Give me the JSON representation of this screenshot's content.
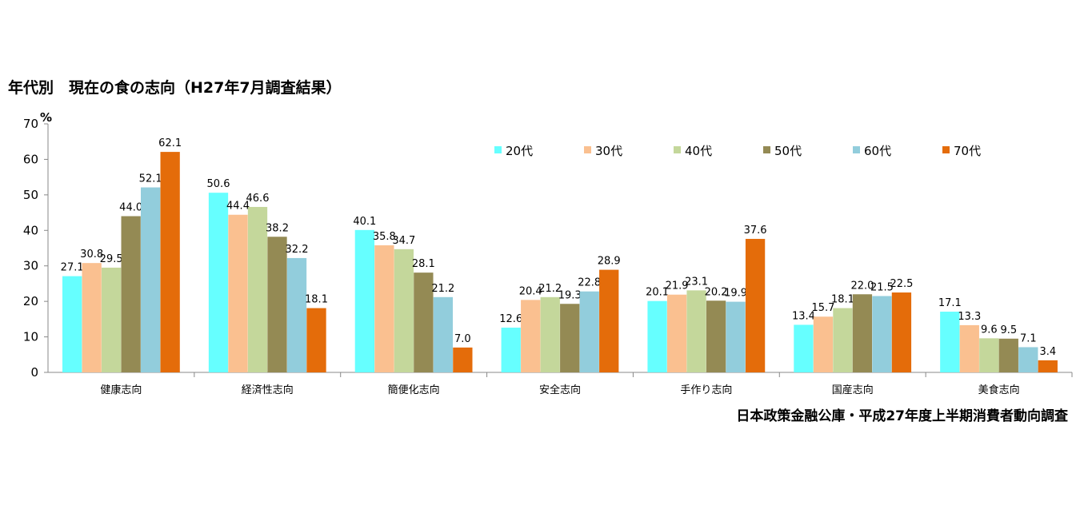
{
  "chart_data": {
    "type": "bar",
    "title": "年代別　現在の食の志向（H27年7月調査結果）",
    "ylabel": "%",
    "xlabel": "",
    "ylim": [
      0,
      70
    ],
    "yticks": [
      0,
      10,
      20,
      30,
      40,
      50,
      60,
      70
    ],
    "grid": false,
    "legend_position": "top-right",
    "categories": [
      "健康志向",
      "経済性志向",
      "簡便化志向",
      "安全志向",
      "手作り志向",
      "国産志向",
      "美食志向"
    ],
    "series": [
      {
        "name": "20代",
        "color": "#66ffff",
        "values": [
          27.1,
          50.6,
          40.1,
          12.6,
          20.1,
          13.4,
          17.1
        ]
      },
      {
        "name": "30代",
        "color": "#fac090",
        "values": [
          30.8,
          44.4,
          35.8,
          20.4,
          21.9,
          15.7,
          13.3
        ]
      },
      {
        "name": "40代",
        "color": "#c4d79b",
        "values": [
          29.5,
          46.6,
          34.7,
          21.2,
          23.1,
          18.1,
          9.6
        ]
      },
      {
        "name": "50代",
        "color": "#948a54",
        "values": [
          44.0,
          38.2,
          28.1,
          19.3,
          20.2,
          22.0,
          9.5
        ]
      },
      {
        "name": "60代",
        "color": "#92cddc",
        "values": [
          52.1,
          32.2,
          21.2,
          22.8,
          19.9,
          21.5,
          7.1
        ]
      },
      {
        "name": "70代",
        "color": "#e46c0a",
        "values": [
          62.1,
          18.1,
          7.0,
          28.9,
          37.6,
          22.5,
          3.4
        ]
      }
    ],
    "source": "日本政策金融公庫・平成27年度上半期消費者動向調査"
  }
}
